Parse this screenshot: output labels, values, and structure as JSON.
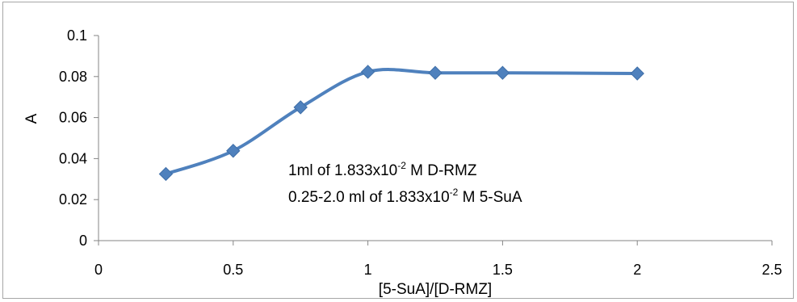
{
  "chart_data": {
    "type": "scatter",
    "title": "",
    "xlabel": "[5-SuA]/[D-RMZ]",
    "ylabel": "A",
    "xlim": [
      0,
      2.5
    ],
    "ylim": [
      0,
      0.1
    ],
    "x_ticks": [
      "0",
      "0.5",
      "1",
      "1.5",
      "2",
      "2.5"
    ],
    "y_ticks": [
      "0",
      "0.02",
      "0.04",
      "0.06",
      "0.08",
      "0.1"
    ],
    "grid": false,
    "legend": "none",
    "series": [
      {
        "color": "#4f81bd",
        "marker": "diamond",
        "line": "smooth",
        "x": [
          0.25,
          0.5,
          0.75,
          1.0,
          1.25,
          1.5,
          2.0
        ],
        "y": [
          0.0325,
          0.0438,
          0.065,
          0.0823,
          0.0818,
          0.0818,
          0.0815
        ]
      }
    ],
    "annotations": [
      {
        "prefix": "1ml of 1.833x10",
        "sup": "-2",
        "suffix": " M  D-RMZ"
      },
      {
        "prefix": "0.25-2.0 ml of 1.833x10",
        "sup": "-2",
        "suffix": " M 5-SuA"
      }
    ]
  }
}
